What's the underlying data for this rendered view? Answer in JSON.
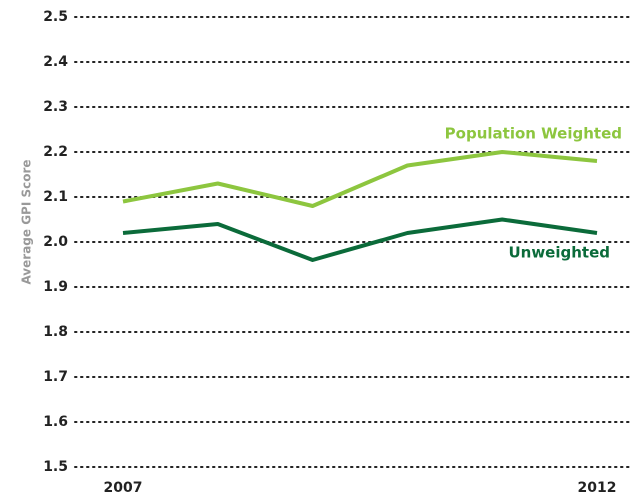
{
  "chart_data": {
    "type": "line",
    "y_label": "Average GPI Score",
    "categories": [
      "2007",
      null,
      null,
      null,
      null,
      "2012"
    ],
    "series": [
      {
        "name": "Population Weighted",
        "color": "#8dc63f",
        "values": [
          2.09,
          2.13,
          2.08,
          2.17,
          2.2,
          2.18
        ]
      },
      {
        "name": "Unweighted",
        "color": "#0b6b3a",
        "values": [
          2.02,
          2.04,
          1.96,
          2.02,
          2.05,
          2.02
        ]
      }
    ],
    "ylim": [
      1.5,
      2.5
    ],
    "yticks": [
      1.5,
      1.6,
      1.7,
      1.8,
      1.9,
      {
        "value": 2,
        "label": "2.0"
      },
      2.1,
      2.2,
      2.3,
      2.4,
      2.5
    ],
    "grid": true
  }
}
